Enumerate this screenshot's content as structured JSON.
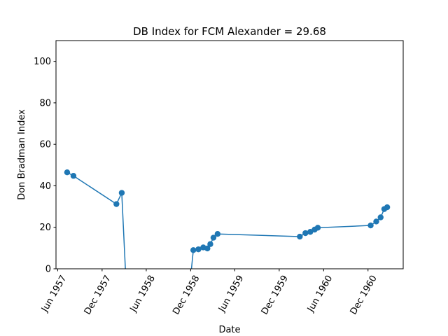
{
  "chart_data": {
    "type": "line",
    "title": "DB Index for FCM Alexander = 29.68",
    "xlabel": "Date",
    "ylabel": "Don Bradman Index",
    "xlim": [
      "1957-05-25",
      "1961-04-25"
    ],
    "ylim": [
      0,
      110
    ],
    "x_ticks": [
      {
        "date": "1957-06-01",
        "label": "Jun 1957"
      },
      {
        "date": "1957-12-01",
        "label": "Dec 1957"
      },
      {
        "date": "1958-06-01",
        "label": "Jun 1958"
      },
      {
        "date": "1958-12-01",
        "label": "Dec 1958"
      },
      {
        "date": "1959-06-01",
        "label": "Jun 1959"
      },
      {
        "date": "1959-12-01",
        "label": "Dec 1959"
      },
      {
        "date": "1960-06-01",
        "label": "Jun 1960"
      },
      {
        "date": "1960-12-01",
        "label": "Dec 1960"
      }
    ],
    "y_ticks": [
      0,
      20,
      40,
      60,
      80,
      100
    ],
    "grid": false,
    "color": "#1f77b4",
    "series": [
      {
        "points": [
          {
            "x": "1957-07-10",
            "y": 46.5,
            "marker": true
          },
          {
            "x": "1957-08-05",
            "y": 44.8,
            "marker": true
          },
          {
            "x": "1958-01-29",
            "y": 31.2,
            "marker": true
          },
          {
            "x": "1958-02-20",
            "y": 36.6,
            "marker": true
          },
          {
            "x": "1958-03-09",
            "y": -5,
            "marker": false
          },
          {
            "x": "1958-11-30",
            "y": -5,
            "marker": false
          },
          {
            "x": "1958-12-12",
            "y": 9.0,
            "marker": true
          },
          {
            "x": "1959-01-02",
            "y": 9.4,
            "marker": true
          },
          {
            "x": "1959-01-22",
            "y": 10.3,
            "marker": true
          },
          {
            "x": "1959-02-08",
            "y": 9.8,
            "marker": true
          },
          {
            "x": "1959-02-20",
            "y": 11.9,
            "marker": true
          },
          {
            "x": "1959-03-05",
            "y": 15.0,
            "marker": true
          },
          {
            "x": "1959-03-22",
            "y": 16.8,
            "marker": true
          },
          {
            "x": "1960-02-24",
            "y": 15.5,
            "marker": true
          },
          {
            "x": "1960-03-18",
            "y": 17.2,
            "marker": true
          },
          {
            "x": "1960-04-07",
            "y": 17.8,
            "marker": true
          },
          {
            "x": "1960-04-25",
            "y": 18.9,
            "marker": true
          },
          {
            "x": "1960-05-08",
            "y": 19.8,
            "marker": true
          },
          {
            "x": "1960-12-12",
            "y": 20.9,
            "marker": true
          },
          {
            "x": "1961-01-04",
            "y": 22.8,
            "marker": true
          },
          {
            "x": "1961-01-22",
            "y": 24.8,
            "marker": true
          },
          {
            "x": "1961-02-06",
            "y": 28.8,
            "marker": true
          },
          {
            "x": "1961-02-18",
            "y": 29.68,
            "marker": true
          }
        ]
      }
    ]
  }
}
